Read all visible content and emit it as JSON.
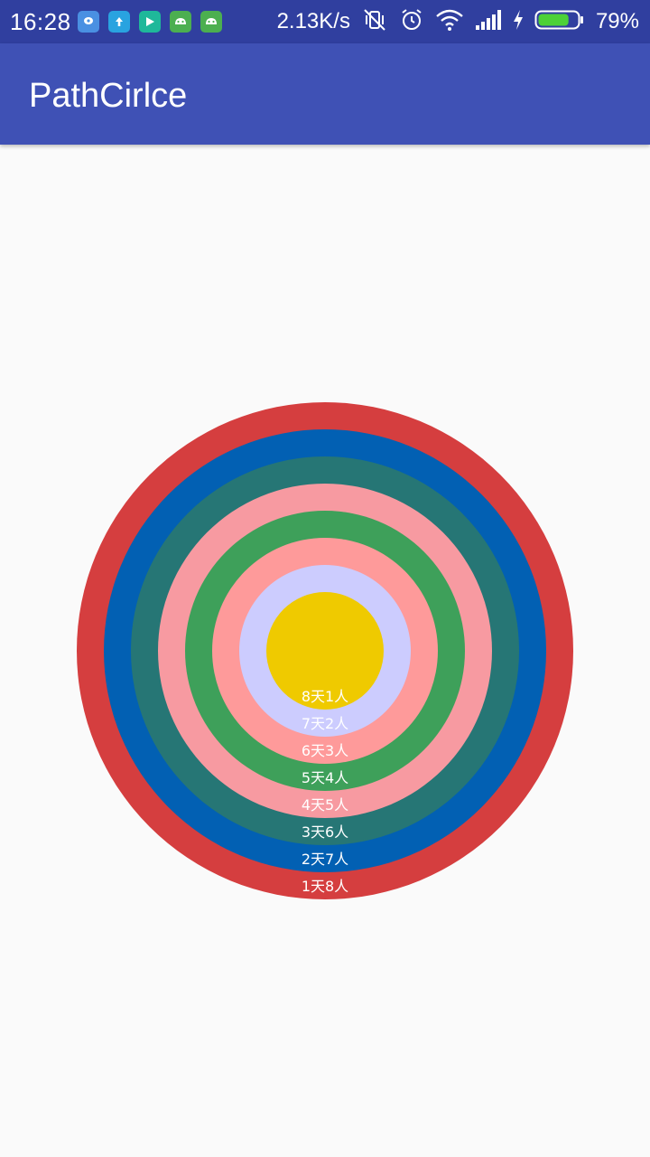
{
  "status_bar": {
    "time": "16:28",
    "net_speed": "2.13K/s",
    "battery": "79%",
    "notification_icons": [
      {
        "name": "chat-bubble-icon",
        "color": "#4a90e2"
      },
      {
        "name": "upload-arrow-icon",
        "color": "#29a3e0"
      },
      {
        "name": "play-store-icon",
        "color": "#1fb89a"
      },
      {
        "name": "android-robot-icon",
        "color": "#4caf50"
      },
      {
        "name": "android-robot-icon",
        "color": "#4caf50"
      }
    ],
    "status_icons": [
      "vibrate-mute-icon",
      "alarm-icon",
      "wifi-icon",
      "signal-icon",
      "charging-icon",
      "battery-icon"
    ],
    "battery_level": 0.79,
    "battery_color": "#4cd137"
  },
  "app_bar": {
    "title": "PathCirlce",
    "color": "#3f51b5"
  },
  "chart_data": {
    "type": "concentric-rings",
    "rings": [
      {
        "label": "1天8人",
        "color": "#d53e3f"
      },
      {
        "label": "2天7人",
        "color": "#0260b3"
      },
      {
        "label": "3天6人",
        "color": "#267675"
      },
      {
        "label": "4天5人",
        "color": "#f79aa1"
      },
      {
        "label": "5天4人",
        "color": "#3ea05a"
      },
      {
        "label": "6天3人",
        "color": "#fe9a9a"
      },
      {
        "label": "7天2人",
        "color": "#ccccfe"
      },
      {
        "label": "8天1人",
        "color": "#efca00"
      }
    ]
  }
}
